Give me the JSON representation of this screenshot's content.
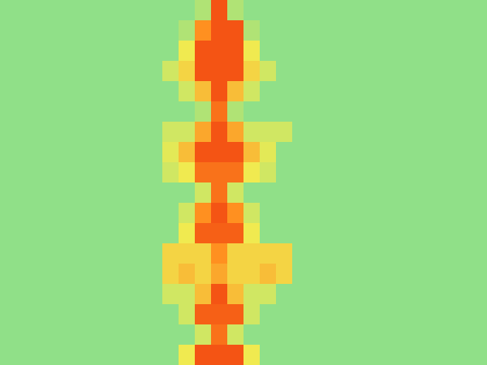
{
  "chart_data": {
    "type": "heatmap",
    "tick_labels": false,
    "color_range": [
      0,
      1
    ],
    "cells": [
      [
        0.45,
        0.45,
        0.45,
        0.45,
        0.45,
        0.45,
        0.45,
        0.45,
        0.45,
        0.45,
        0.45,
        0.45,
        0.5,
        0.9,
        0.5,
        0.45,
        0.45,
        0.45,
        0.45,
        0.45,
        0.45,
        0.45,
        0.45,
        0.45,
        0.45,
        0.45,
        0.45,
        0.45,
        0.45,
        0.45
      ],
      [
        0.45,
        0.45,
        0.45,
        0.45,
        0.45,
        0.45,
        0.45,
        0.45,
        0.45,
        0.45,
        0.45,
        0.5,
        0.8,
        0.9,
        0.9,
        0.5,
        0.45,
        0.45,
        0.45,
        0.45,
        0.45,
        0.45,
        0.45,
        0.45,
        0.45,
        0.45,
        0.45,
        0.45,
        0.45,
        0.45
      ],
      [
        0.45,
        0.45,
        0.45,
        0.45,
        0.45,
        0.45,
        0.45,
        0.45,
        0.45,
        0.45,
        0.45,
        0.6,
        0.9,
        0.9,
        0.9,
        0.6,
        0.45,
        0.45,
        0.45,
        0.45,
        0.45,
        0.45,
        0.45,
        0.45,
        0.45,
        0.45,
        0.45,
        0.45,
        0.45,
        0.45
      ],
      [
        0.45,
        0.45,
        0.45,
        0.45,
        0.45,
        0.45,
        0.45,
        0.45,
        0.45,
        0.45,
        0.55,
        0.65,
        0.9,
        0.9,
        0.9,
        0.65,
        0.55,
        0.45,
        0.45,
        0.45,
        0.45,
        0.45,
        0.45,
        0.45,
        0.45,
        0.45,
        0.45,
        0.45,
        0.45,
        0.45
      ],
      [
        0.45,
        0.45,
        0.45,
        0.45,
        0.45,
        0.45,
        0.45,
        0.45,
        0.45,
        0.45,
        0.45,
        0.55,
        0.7,
        0.9,
        0.7,
        0.55,
        0.45,
        0.45,
        0.45,
        0.45,
        0.45,
        0.45,
        0.45,
        0.45,
        0.45,
        0.45,
        0.45,
        0.45,
        0.45,
        0.45
      ],
      [
        0.45,
        0.45,
        0.45,
        0.45,
        0.45,
        0.45,
        0.45,
        0.45,
        0.45,
        0.45,
        0.45,
        0.45,
        0.5,
        0.85,
        0.5,
        0.45,
        0.45,
        0.45,
        0.45,
        0.45,
        0.45,
        0.45,
        0.45,
        0.45,
        0.45,
        0.45,
        0.45,
        0.45,
        0.45,
        0.45
      ],
      [
        0.45,
        0.45,
        0.45,
        0.45,
        0.45,
        0.45,
        0.45,
        0.45,
        0.45,
        0.45,
        0.55,
        0.55,
        0.75,
        0.9,
        0.75,
        0.55,
        0.55,
        0.55,
        0.45,
        0.45,
        0.45,
        0.45,
        0.45,
        0.45,
        0.45,
        0.45,
        0.45,
        0.45,
        0.45,
        0.45
      ],
      [
        0.45,
        0.45,
        0.45,
        0.45,
        0.45,
        0.45,
        0.45,
        0.45,
        0.45,
        0.45,
        0.58,
        0.7,
        0.9,
        0.9,
        0.9,
        0.7,
        0.58,
        0.45,
        0.45,
        0.45,
        0.45,
        0.45,
        0.45,
        0.45,
        0.45,
        0.45,
        0.45,
        0.45,
        0.45,
        0.45
      ],
      [
        0.45,
        0.45,
        0.45,
        0.45,
        0.45,
        0.45,
        0.45,
        0.45,
        0.45,
        0.45,
        0.55,
        0.6,
        0.85,
        0.85,
        0.85,
        0.6,
        0.55,
        0.45,
        0.45,
        0.45,
        0.45,
        0.45,
        0.45,
        0.45,
        0.45,
        0.45,
        0.45,
        0.45,
        0.45,
        0.45
      ],
      [
        0.45,
        0.45,
        0.45,
        0.45,
        0.45,
        0.45,
        0.45,
        0.45,
        0.45,
        0.45,
        0.45,
        0.45,
        0.55,
        0.85,
        0.55,
        0.45,
        0.45,
        0.45,
        0.45,
        0.45,
        0.45,
        0.45,
        0.45,
        0.45,
        0.45,
        0.45,
        0.45,
        0.45,
        0.45,
        0.45
      ],
      [
        0.45,
        0.45,
        0.45,
        0.45,
        0.45,
        0.45,
        0.45,
        0.45,
        0.45,
        0.45,
        0.45,
        0.55,
        0.8,
        0.9,
        0.8,
        0.55,
        0.45,
        0.45,
        0.45,
        0.45,
        0.45,
        0.45,
        0.45,
        0.45,
        0.45,
        0.45,
        0.45,
        0.45,
        0.45,
        0.45
      ],
      [
        0.45,
        0.45,
        0.45,
        0.45,
        0.45,
        0.45,
        0.45,
        0.45,
        0.45,
        0.45,
        0.45,
        0.6,
        0.88,
        0.88,
        0.88,
        0.6,
        0.45,
        0.45,
        0.45,
        0.45,
        0.45,
        0.45,
        0.45,
        0.45,
        0.45,
        0.45,
        0.45,
        0.45,
        0.45,
        0.45
      ],
      [
        0.45,
        0.45,
        0.45,
        0.45,
        0.45,
        0.45,
        0.45,
        0.45,
        0.45,
        0.45,
        0.65,
        0.65,
        0.65,
        0.8,
        0.65,
        0.65,
        0.65,
        0.65,
        0.45,
        0.45,
        0.45,
        0.45,
        0.45,
        0.45,
        0.45,
        0.45,
        0.45,
        0.45,
        0.45,
        0.45
      ],
      [
        0.45,
        0.45,
        0.45,
        0.45,
        0.45,
        0.45,
        0.45,
        0.45,
        0.45,
        0.45,
        0.65,
        0.7,
        0.65,
        0.75,
        0.65,
        0.65,
        0.7,
        0.65,
        0.45,
        0.45,
        0.45,
        0.45,
        0.45,
        0.45,
        0.45,
        0.45,
        0.45,
        0.45,
        0.45,
        0.45
      ],
      [
        0.45,
        0.45,
        0.45,
        0.45,
        0.45,
        0.45,
        0.45,
        0.45,
        0.45,
        0.45,
        0.55,
        0.55,
        0.7,
        0.9,
        0.7,
        0.55,
        0.55,
        0.45,
        0.45,
        0.45,
        0.45,
        0.45,
        0.45,
        0.45,
        0.45,
        0.45,
        0.45,
        0.45,
        0.45,
        0.45
      ],
      [
        0.45,
        0.45,
        0.45,
        0.45,
        0.45,
        0.45,
        0.45,
        0.45,
        0.45,
        0.45,
        0.45,
        0.55,
        0.88,
        0.88,
        0.88,
        0.55,
        0.45,
        0.45,
        0.45,
        0.45,
        0.45,
        0.45,
        0.45,
        0.45,
        0.45,
        0.45,
        0.45,
        0.45,
        0.45,
        0.45
      ],
      [
        0.45,
        0.45,
        0.45,
        0.45,
        0.45,
        0.45,
        0.45,
        0.45,
        0.45,
        0.45,
        0.45,
        0.45,
        0.55,
        0.85,
        0.55,
        0.45,
        0.45,
        0.45,
        0.45,
        0.45,
        0.45,
        0.45,
        0.45,
        0.45,
        0.45,
        0.45,
        0.45,
        0.45,
        0.45,
        0.45
      ],
      [
        0.45,
        0.45,
        0.45,
        0.45,
        0.45,
        0.45,
        0.45,
        0.45,
        0.45,
        0.45,
        0.45,
        0.6,
        0.9,
        0.9,
        0.9,
        0.6,
        0.45,
        0.45,
        0.45,
        0.45,
        0.45,
        0.45,
        0.45,
        0.45,
        0.45,
        0.45,
        0.45,
        0.45,
        0.45,
        0.45
      ]
    ]
  }
}
